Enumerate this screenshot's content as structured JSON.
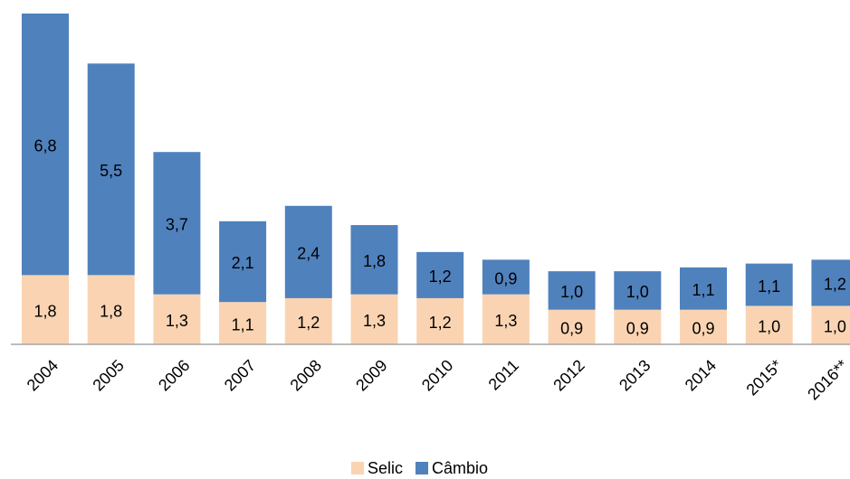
{
  "chart_data": {
    "type": "stacked_bar",
    "categories": [
      "2004",
      "2005",
      "2006",
      "2007",
      "2008",
      "2009",
      "2010",
      "2011",
      "2012",
      "2013",
      "2014",
      "2015*",
      "2016**"
    ],
    "series": [
      {
        "name": "Selic",
        "color": "#fad4b2",
        "values": [
          1.8,
          1.8,
          1.3,
          1.1,
          1.2,
          1.3,
          1.2,
          1.3,
          0.9,
          0.9,
          0.9,
          1.0,
          1.0
        ],
        "value_labels": [
          "1,8",
          "1,8",
          "1,3",
          "1,1",
          "1,2",
          "1,3",
          "1,2",
          "1,3",
          "0,9",
          "0,9",
          "0,9",
          "1,0",
          "1,0"
        ]
      },
      {
        "name": "Câmbio",
        "color": "#4f81bd",
        "values": [
          6.8,
          5.5,
          3.7,
          2.1,
          2.4,
          1.8,
          1.2,
          0.9,
          1.0,
          1.0,
          1.1,
          1.1,
          1.2
        ],
        "value_labels": [
          "6,8",
          "5,5",
          "3,7",
          "2,1",
          "2,4",
          "1,8",
          "1,2",
          "0,9",
          "1,0",
          "1,0",
          "1,1",
          "1,1",
          "1,2"
        ]
      }
    ],
    "legend": "bottom"
  }
}
